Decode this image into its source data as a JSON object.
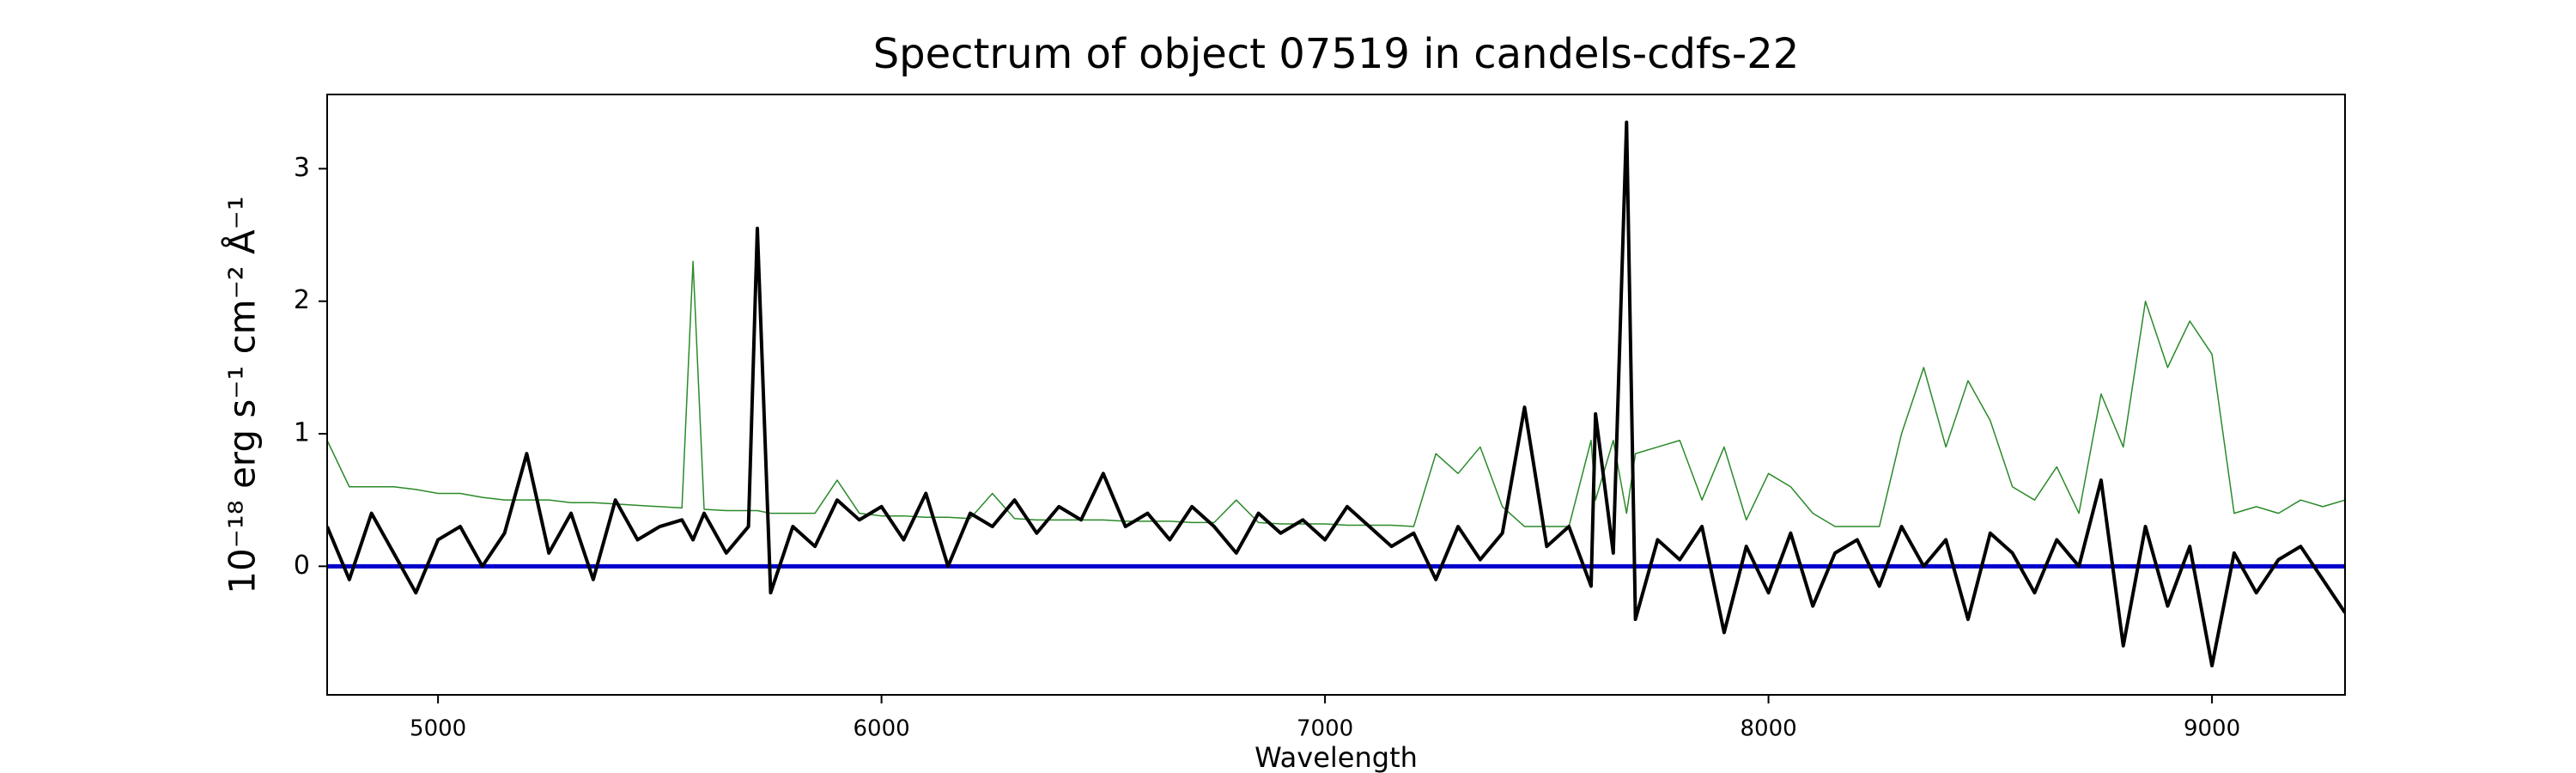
{
  "chart_data": {
    "type": "line",
    "title": "Spectrum of object 07519 in candels-cdfs-22",
    "xlabel": "Wavelength",
    "ylabel": "10⁻¹⁸ erg s⁻¹ cm⁻² Å⁻¹",
    "xlim": [
      4750,
      9300
    ],
    "ylim": [
      -0.97,
      3.56
    ],
    "xticks": [
      5000,
      6000,
      7000,
      8000,
      9000
    ],
    "yticks": [
      0,
      1,
      2,
      3
    ],
    "series": [
      {
        "color": "#2a8a2a",
        "width": 1.5,
        "x": [
          4750,
          4800,
          4850,
          4900,
          4950,
          5000,
          5050,
          5100,
          5150,
          5200,
          5250,
          5300,
          5350,
          5400,
          5450,
          5500,
          5550,
          5575,
          5600,
          5650,
          5700,
          5720,
          5750,
          5800,
          5850,
          5900,
          5950,
          6000,
          6050,
          6100,
          6150,
          6200,
          6250,
          6300,
          6350,
          6400,
          6450,
          6500,
          6550,
          6600,
          6650,
          6700,
          6750,
          6800,
          6850,
          6900,
          6950,
          7000,
          7050,
          7100,
          7150,
          7200,
          7250,
          7300,
          7350,
          7400,
          7450,
          7500,
          7550,
          7600,
          7610,
          7650,
          7680,
          7700,
          7750,
          7800,
          7850,
          7900,
          7950,
          8000,
          8050,
          8100,
          8150,
          8200,
          8250,
          8300,
          8350,
          8400,
          8450,
          8500,
          8550,
          8600,
          8650,
          8700,
          8750,
          8800,
          8850,
          8900,
          8950,
          9000,
          9050,
          9100,
          9150,
          9200,
          9250,
          9300
        ],
        "values": [
          0.95,
          0.6,
          0.6,
          0.6,
          0.58,
          0.55,
          0.55,
          0.52,
          0.5,
          0.5,
          0.5,
          0.48,
          0.48,
          0.47,
          0.46,
          0.45,
          0.44,
          2.3,
          0.43,
          0.42,
          0.42,
          0.42,
          0.4,
          0.4,
          0.4,
          0.65,
          0.4,
          0.38,
          0.38,
          0.37,
          0.37,
          0.36,
          0.55,
          0.36,
          0.35,
          0.35,
          0.35,
          0.35,
          0.34,
          0.34,
          0.34,
          0.33,
          0.33,
          0.5,
          0.33,
          0.32,
          0.32,
          0.32,
          0.31,
          0.31,
          0.31,
          0.3,
          0.85,
          0.7,
          0.9,
          0.45,
          0.3,
          0.3,
          0.3,
          0.95,
          0.5,
          0.95,
          0.4,
          0.85,
          0.9,
          0.95,
          0.5,
          0.9,
          0.35,
          0.7,
          0.6,
          0.4,
          0.3,
          0.3,
          0.3,
          1.0,
          1.5,
          0.9,
          1.4,
          1.1,
          0.6,
          0.5,
          0.75,
          0.4,
          1.3,
          0.9,
          2.0,
          1.5,
          1.85,
          1.6,
          0.4,
          0.45,
          0.4,
          0.5,
          0.45,
          0.5
        ]
      },
      {
        "color": "#0000cc",
        "width": 5,
        "x": [
          4750,
          9300
        ],
        "values": [
          0,
          0
        ]
      },
      {
        "color": "#000000",
        "width": 4,
        "x": [
          4750,
          4800,
          4850,
          4900,
          4950,
          5000,
          5050,
          5100,
          5150,
          5200,
          5250,
          5300,
          5350,
          5400,
          5450,
          5500,
          5550,
          5575,
          5600,
          5650,
          5700,
          5720,
          5750,
          5800,
          5850,
          5900,
          5950,
          6000,
          6050,
          6100,
          6150,
          6200,
          6250,
          6300,
          6350,
          6400,
          6450,
          6500,
          6550,
          6600,
          6650,
          6700,
          6750,
          6800,
          6850,
          6900,
          6950,
          7000,
          7050,
          7100,
          7150,
          7200,
          7250,
          7300,
          7350,
          7400,
          7450,
          7500,
          7550,
          7600,
          7610,
          7650,
          7680,
          7700,
          7750,
          7800,
          7850,
          7900,
          7950,
          8000,
          8050,
          8100,
          8150,
          8200,
          8250,
          8300,
          8350,
          8400,
          8450,
          8500,
          8550,
          8600,
          8650,
          8700,
          8750,
          8800,
          8850,
          8900,
          8950,
          9000,
          9050,
          9100,
          9150,
          9200,
          9250,
          9300
        ],
        "values": [
          0.3,
          -0.1,
          0.4,
          0.1,
          -0.2,
          0.2,
          0.3,
          0.0,
          0.25,
          0.85,
          0.1,
          0.4,
          -0.1,
          0.5,
          0.2,
          0.3,
          0.35,
          0.2,
          0.4,
          0.1,
          0.3,
          2.55,
          -0.2,
          0.3,
          0.15,
          0.5,
          0.35,
          0.45,
          0.2,
          0.55,
          0.0,
          0.4,
          0.3,
          0.5,
          0.25,
          0.45,
          0.35,
          0.7,
          0.3,
          0.4,
          0.2,
          0.45,
          0.3,
          0.1,
          0.4,
          0.25,
          0.35,
          0.2,
          0.45,
          0.3,
          0.15,
          0.25,
          -0.1,
          0.3,
          0.05,
          0.25,
          1.2,
          0.15,
          0.3,
          -0.15,
          1.15,
          0.1,
          3.35,
          -0.4,
          0.2,
          0.05,
          0.3,
          -0.5,
          0.15,
          -0.2,
          0.25,
          -0.3,
          0.1,
          0.2,
          -0.15,
          0.3,
          0.0,
          0.2,
          -0.4,
          0.25,
          0.1,
          -0.2,
          0.2,
          0.0,
          0.65,
          -0.6,
          0.3,
          -0.3,
          0.15,
          -0.75,
          0.1,
          -0.2,
          0.05,
          0.15,
          -0.1,
          -0.35
        ]
      }
    ]
  }
}
